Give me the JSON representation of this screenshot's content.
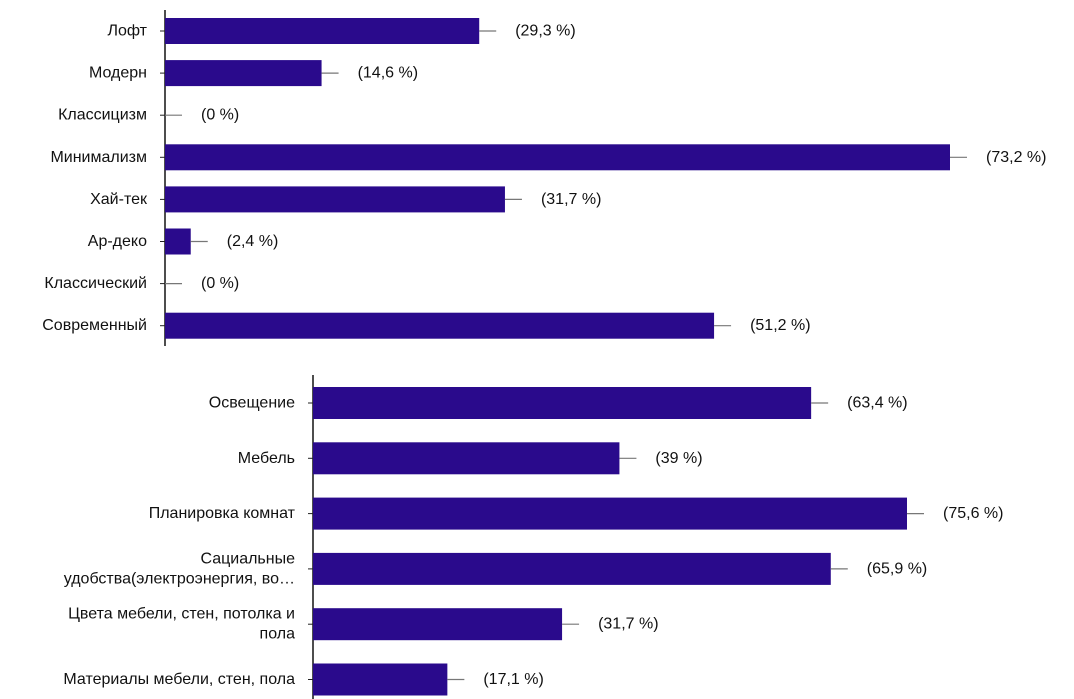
{
  "bar_color": "#2a0a8c",
  "chart_data": [
    {
      "type": "bar",
      "orientation": "horizontal",
      "categories": [
        "Лофт",
        "Модерн",
        "Классицизм",
        "Минимализм",
        "Хай-тек",
        "Ар-деко",
        "Классический",
        "Современный"
      ],
      "values": [
        29.3,
        14.6,
        0,
        73.2,
        31.7,
        2.4,
        0,
        51.2
      ],
      "value_labels": [
        "(29,3 %)",
        "(14,6 %)",
        "(0 %)",
        "(73,2 %)",
        "(31,7 %)",
        "(2,4 %)",
        "(0 %)",
        "(51,2 %)"
      ],
      "xlim": [
        0,
        73.2
      ]
    },
    {
      "type": "bar",
      "orientation": "horizontal",
      "categories": [
        "Освещение",
        "Мебель",
        "Планировка комнат",
        "Сациальные удобства(электроэнергия, во…",
        "Цвета мебели, стен, потолка и пола",
        "Материалы мебели, стен, пола"
      ],
      "category_lines": [
        [
          "Освещение"
        ],
        [
          "Мебель"
        ],
        [
          "Планировка комнат"
        ],
        [
          "Сациальные",
          "удобства(электроэнергия, во…"
        ],
        [
          "Цвета мебели, стен, потолка и",
          "пола"
        ],
        [
          "Материалы мебели, стен, пола"
        ]
      ],
      "values": [
        63.4,
        39,
        75.6,
        65.9,
        31.7,
        17.1
      ],
      "value_labels": [
        "(63,4 %)",
        "(39 %)",
        "(75,6 %)",
        "(65,9 %)",
        "(31,7 %)",
        "(17,1 %)"
      ],
      "xlim": [
        0,
        75.6
      ]
    }
  ]
}
